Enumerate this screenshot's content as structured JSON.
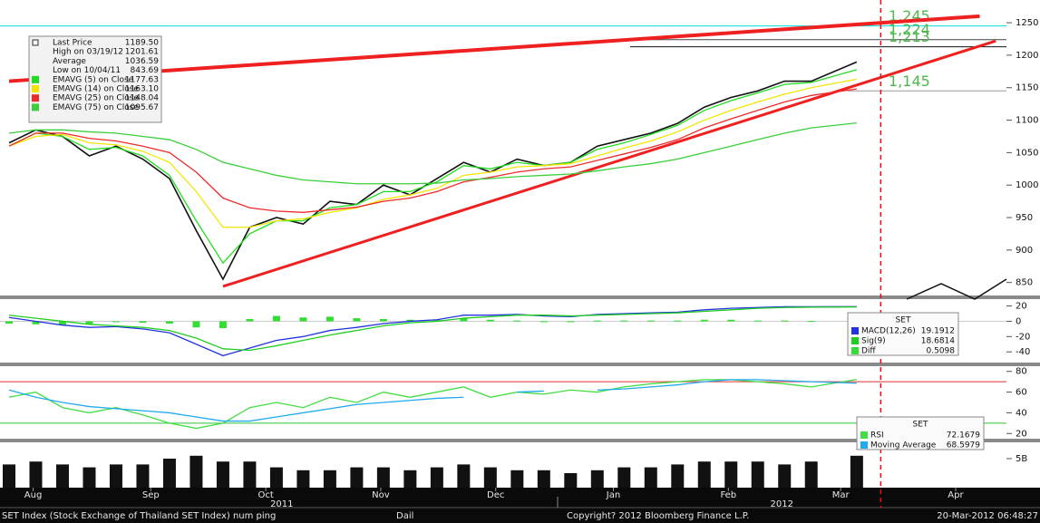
{
  "chart_data": [
    {
      "type": "line",
      "x": [
        0,
        1,
        2,
        3,
        4,
        5,
        6,
        7,
        8,
        9,
        10,
        11,
        12,
        13,
        14,
        15,
        16,
        17,
        18,
        19,
        20,
        21,
        22,
        23,
        24,
        25,
        26,
        27,
        28,
        29,
        30,
        31.7
      ],
      "xlim": [
        0,
        37.3
      ],
      "ylim": [
        830,
        1285
      ],
      "yticks": [
        850,
        900,
        950,
        1000,
        1050,
        1100,
        1150,
        1200,
        1250
      ],
      "series": [
        {
          "name": "Last Price",
          "color": "#111111",
          "legend_value": "1189.50",
          "values": [
            1065,
            1085,
            1075,
            1045,
            1060,
            1040,
            1010,
            930,
            855,
            935,
            950,
            940,
            975,
            970,
            1000,
            985,
            1010,
            1035,
            1020,
            1040,
            1030,
            1035,
            1060,
            1070,
            1080,
            1095,
            1120,
            1135,
            1145,
            1160,
            1160,
            1189.5
          ]
        },
        {
          "name": "EMAVG (5) on Close",
          "color": "#22dd22",
          "legend_value": "1177.63",
          "values": [
            1060,
            1080,
            1075,
            1055,
            1058,
            1045,
            1015,
            945,
            880,
            925,
            945,
            945,
            965,
            970,
            990,
            990,
            1005,
            1030,
            1025,
            1035,
            1030,
            1035,
            1055,
            1065,
            1078,
            1092,
            1115,
            1130,
            1142,
            1155,
            1158,
            1177.63
          ]
        },
        {
          "name": "EMAVG (14) on Close",
          "color": "#f2e600",
          "legend_value": "1163.10",
          "values": [
            1060,
            1075,
            1078,
            1065,
            1062,
            1052,
            1035,
            990,
            935,
            935,
            945,
            948,
            958,
            965,
            978,
            985,
            995,
            1015,
            1020,
            1028,
            1030,
            1033,
            1045,
            1057,
            1068,
            1082,
            1100,
            1115,
            1128,
            1140,
            1150,
            1163.1
          ]
        },
        {
          "name": "EMAVG (25) on Close",
          "color": "#ee2b2b",
          "legend_value": "1148.04",
          "values": [
            1060,
            1080,
            1080,
            1072,
            1068,
            1060,
            1050,
            1020,
            980,
            965,
            960,
            958,
            962,
            966,
            975,
            980,
            990,
            1005,
            1012,
            1020,
            1025,
            1028,
            1038,
            1048,
            1058,
            1070,
            1088,
            1102,
            1115,
            1128,
            1138,
            1148.04
          ]
        },
        {
          "name": "EMAVG (75) on Close",
          "color": "#3ccf3c",
          "legend_value": "1095.67",
          "values": [
            1080,
            1085,
            1085,
            1082,
            1080,
            1075,
            1070,
            1055,
            1035,
            1025,
            1015,
            1008,
            1005,
            1002,
            1002,
            1002,
            1003,
            1008,
            1010,
            1013,
            1015,
            1017,
            1022,
            1028,
            1033,
            1040,
            1050,
            1060,
            1070,
            1080,
            1088,
            1095.67
          ]
        }
      ],
      "stats": [
        {
          "label": "High on 03/19/12",
          "value": "1201.61"
        },
        {
          "label": "Average",
          "value": "1036.59"
        },
        {
          "label": "Low on 10/04/11",
          "value": "843.69"
        }
      ],
      "levels": [
        {
          "value": 1245,
          "label": "1,245",
          "color": "#00dede"
        },
        {
          "value": 1224,
          "label": "1,224",
          "color": "#444444"
        },
        {
          "value": 1213,
          "label": "1,213",
          "color": "#111111"
        },
        {
          "value": 1145,
          "label": "1,145",
          "color": "#999999"
        }
      ],
      "trendlines": [
        {
          "x": [
            0,
            36.3
          ],
          "values": [
            1160,
            1260
          ]
        },
        {
          "x": [
            8,
            36.9
          ],
          "values": [
            844,
            1222
          ]
        }
      ],
      "cursor": 32.6
    },
    {
      "type": "line",
      "title": "SET",
      "x": [
        0,
        1,
        2,
        3,
        4,
        5,
        6,
        7,
        8,
        9,
        10,
        11,
        12,
        13,
        14,
        15,
        16,
        17,
        18,
        19,
        20,
        21,
        22,
        23,
        24,
        25,
        26,
        27,
        28,
        29,
        30,
        31.7
      ],
      "xlim": [
        0,
        37.3
      ],
      "ylim": [
        -54,
        29
      ],
      "yticks": [
        -40,
        -20,
        0,
        20
      ],
      "series": [
        {
          "name": "MACD(12,26)",
          "color": "#2233dd",
          "legend_value": "19.1912",
          "values": [
            5,
            0,
            -5,
            -8,
            -7,
            -10,
            -15,
            -30,
            -45,
            -35,
            -25,
            -20,
            -12,
            -8,
            -3,
            0,
            2,
            8,
            8,
            9,
            7,
            6,
            9,
            10,
            11,
            12,
            15,
            17,
            18,
            19,
            19,
            19.1912
          ]
        },
        {
          "name": "Sig(9)",
          "color": "#22cc22",
          "legend_value": "18.6814",
          "values": [
            8,
            4,
            0,
            -4,
            -6,
            -8,
            -12,
            -22,
            -36,
            -38,
            -32,
            -25,
            -18,
            -12,
            -6,
            -2,
            0,
            4,
            6,
            8,
            8,
            7,
            8,
            9,
            10,
            11,
            13,
            15,
            17,
            18,
            18.5,
            18.6814
          ]
        },
        {
          "name": "Diff",
          "color": "#33dd33",
          "style": "bar",
          "legend_value": "0.5098",
          "values": [
            -3,
            -4,
            -5,
            -4,
            -1,
            -2,
            -3,
            -8,
            -9,
            3,
            7,
            5,
            6,
            4,
            3,
            2,
            2,
            4,
            2,
            1,
            -1,
            -1,
            1,
            1,
            1,
            1,
            2,
            2,
            1,
            1,
            0.5,
            0.5098
          ]
        }
      ]
    },
    {
      "type": "line",
      "title": "SET",
      "x": [
        0,
        1,
        2,
        3,
        4,
        5,
        6,
        7,
        8,
        9,
        10,
        11,
        12,
        13,
        14,
        15,
        16,
        17,
        18,
        19,
        20,
        21,
        22,
        23,
        24,
        25,
        26,
        27,
        28,
        29,
        30,
        31.7
      ],
      "xlim": [
        0,
        37.3
      ],
      "ylim": [
        15,
        85
      ],
      "yticks": [
        20,
        40,
        60,
        80
      ],
      "levels": [
        {
          "value": 70,
          "color": "#e03030"
        },
        {
          "value": 30,
          "color": "#30c030"
        }
      ],
      "series": [
        {
          "name": "RSI",
          "color": "#44dd44",
          "legend_value": "72.1679",
          "values": [
            55,
            60,
            45,
            40,
            45,
            38,
            30,
            25,
            30,
            45,
            50,
            45,
            55,
            50,
            60,
            55,
            60,
            65,
            55,
            60,
            58,
            62,
            60,
            65,
            68,
            70,
            72,
            72,
            70,
            68,
            65,
            72.1679
          ]
        },
        {
          "name": "Moving Average",
          "color": "#22aaee",
          "legend_value": "68.5979",
          "values": [
            62,
            55,
            50,
            46,
            44,
            42,
            40,
            36,
            32,
            32,
            36,
            40,
            44,
            48,
            50,
            52,
            54,
            55,
            null,
            60,
            61,
            null,
            62,
            63,
            65,
            67,
            70,
            72,
            72,
            71,
            70,
            68.5979
          ]
        }
      ]
    },
    {
      "type": "bar",
      "x": [
        0,
        1,
        2,
        3,
        4,
        5,
        6,
        7,
        8,
        9,
        10,
        11,
        12,
        13,
        14,
        15,
        16,
        17,
        18,
        19,
        20,
        21,
        22,
        23,
        24,
        25,
        26,
        27,
        28,
        29,
        30,
        31.7
      ],
      "xlim": [
        0,
        37.3
      ],
      "ylim": [
        0,
        7.5
      ],
      "yticks": [
        {
          "value": 5,
          "label": "5B"
        }
      ],
      "color": "#111111",
      "values": [
        4,
        4.5,
        4,
        3.5,
        4,
        4,
        5,
        5.5,
        4.5,
        4.5,
        3.5,
        3,
        3,
        3.5,
        3.5,
        3,
        3.5,
        4,
        3.5,
        3,
        3,
        2.5,
        3,
        3.5,
        3.5,
        4,
        4.5,
        4.5,
        4.5,
        4,
        4.5,
        5.5
      ],
      "xticks": [
        {
          "value": 0.9,
          "label": "Aug"
        },
        {
          "value": 5.3,
          "label": "Sep"
        },
        {
          "value": 9.6,
          "label": "Oct"
        },
        {
          "value": 13.9,
          "label": "Nov"
        },
        {
          "value": 18.2,
          "label": "Dec"
        },
        {
          "value": 22.6,
          "label": "Jan"
        },
        {
          "value": 26.9,
          "label": "Feb"
        },
        {
          "value": 31.1,
          "label": "Mar"
        },
        {
          "value": 35.4,
          "label": "Apr"
        }
      ],
      "year_labels": [
        {
          "value": 10.2,
          "label": "2011"
        },
        {
          "value": 28.9,
          "label": "2012"
        }
      ]
    }
  ],
  "footer": {
    "security": "SET Index (Stock Exchange of Thailand SET Index) num ping",
    "period": "Dail",
    "copyright": "Copyright? 2012 Bloomberg Finance L.P.",
    "timestamp": "20-Mar-2012 06:48:27"
  }
}
